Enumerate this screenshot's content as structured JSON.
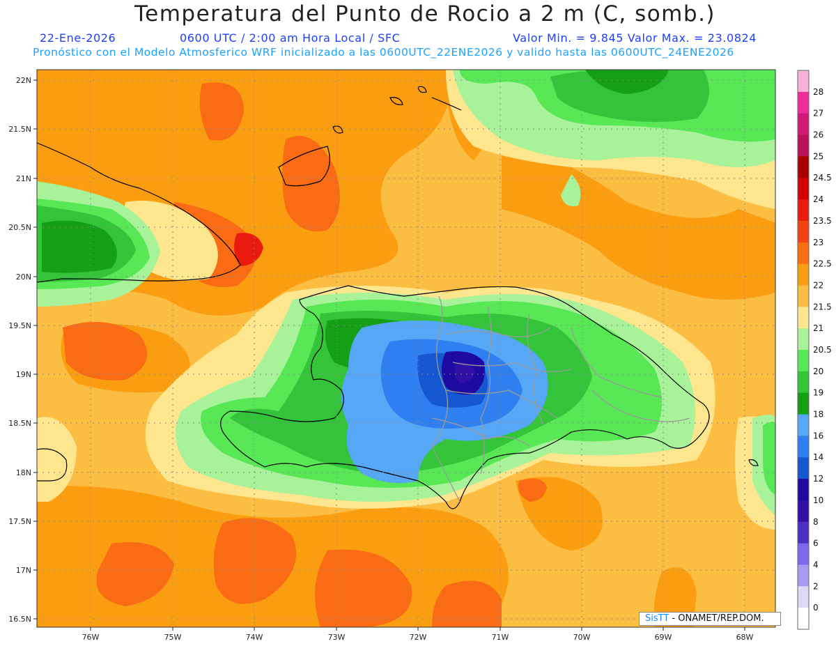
{
  "header": {
    "title": "Temperatura del Punto de Rocio a 2 m (C, somb.)",
    "date": "22-Ene-2026",
    "time": "0600 UTC / 2:00 am Hora Local / SFC",
    "min_max": "Valor Min. = 9.845  Valor Max. = 23.0824",
    "model_info": "Pronóstico con el Modelo Atmosferico WRF inicializado a las 0600UTC_22ENE2026 y valido hasta las  0600UTC_24ENE2026"
  },
  "map": {
    "lat_labels": [
      "22N",
      "21.5N",
      "21N",
      "20.5N",
      "20N",
      "19.5N",
      "19N",
      "18.5N",
      "18N",
      "17.5N",
      "17N",
      "16.5N"
    ],
    "lon_labels": [
      "76W",
      "75W",
      "74W",
      "73W",
      "72W",
      "71W",
      "70W",
      "69W",
      "68W"
    ]
  },
  "colorbar": {
    "labels": [
      "28",
      "27",
      "26",
      "25",
      "24.5",
      "24",
      "23.5",
      "23",
      "22.5",
      "22",
      "21.5",
      "21",
      "20.5",
      "20",
      "19",
      "18",
      "16",
      "14",
      "12",
      "10",
      "8",
      "6",
      "4",
      "2",
      "0"
    ],
    "colors": [
      "#f6b2d8",
      "#f02b9c",
      "#d11a78",
      "#b8115a",
      "#a80000",
      "#d20000",
      "#ea1a0f",
      "#f24315",
      "#f96c14",
      "#fb9d11",
      "#fcbd43",
      "#fde68e",
      "#a8f29a",
      "#58e856",
      "#33c43a",
      "#159f17",
      "#56a7f5",
      "#2f7ff0",
      "#1557d1",
      "#1e0aa0",
      "#3110a6",
      "#4c2ec0",
      "#7e67e8",
      "#a99af0",
      "#dcdaf4",
      "#ffffff"
    ]
  },
  "credit": {
    "brand": "SisTT",
    "text": " - ONAMET/REP.DOM."
  },
  "colors": {
    "title": "#222222",
    "subtitle_dark": "#1f3fff",
    "subtitle_light": "#1da1ff",
    "background_field": "#fbbd43"
  }
}
